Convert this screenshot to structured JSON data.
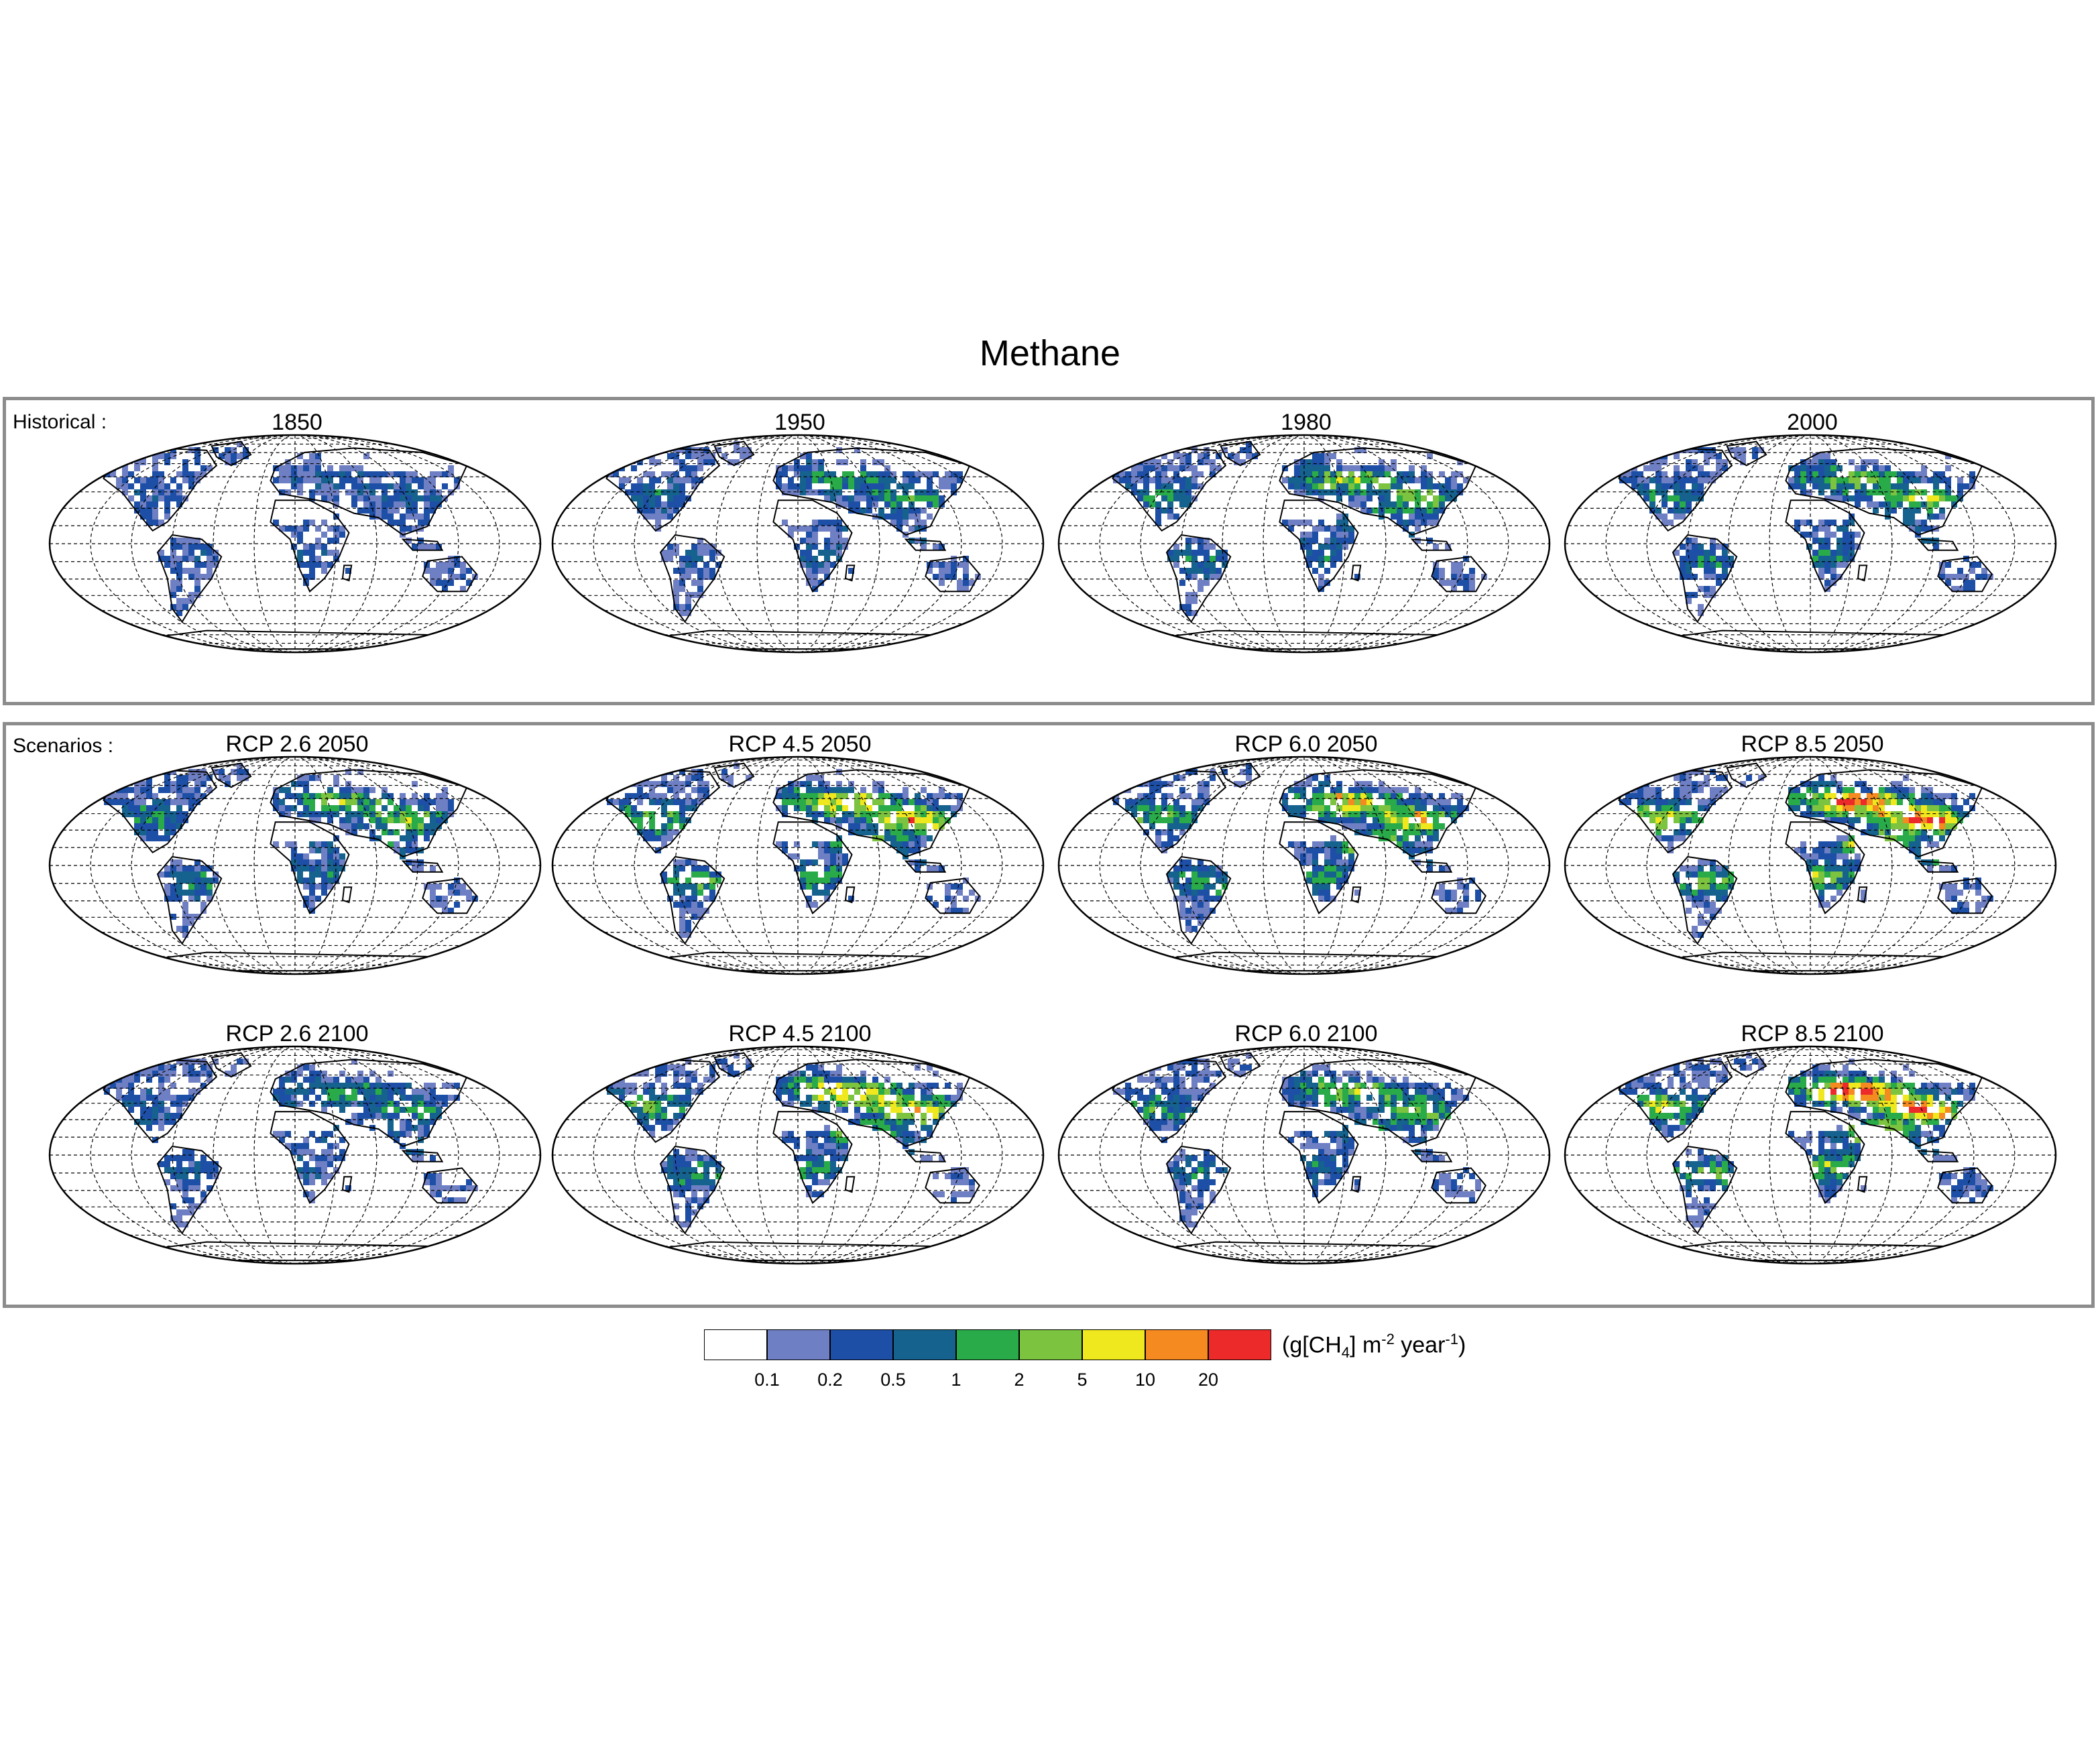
{
  "title": "Methane",
  "sections": {
    "historical_label": "Historical :",
    "scenarios_label": "Scenarios :"
  },
  "panels": [
    {
      "label": "1850",
      "level": 1
    },
    {
      "label": "1950",
      "level": 2
    },
    {
      "label": "1980",
      "level": 3
    },
    {
      "label": "2000",
      "level": 3
    },
    {
      "label": "RCP 2.6 2050",
      "level": 3
    },
    {
      "label": "RCP 4.5 2050",
      "level": 4
    },
    {
      "label": "RCP 6.0 2050",
      "level": 4
    },
    {
      "label": "RCP 8.5 2050",
      "level": 5
    },
    {
      "label": "RCP 2.6 2100",
      "level": 2
    },
    {
      "label": "RCP 4.5 2100",
      "level": 4
    },
    {
      "label": "RCP 6.0 2100",
      "level": 3
    },
    {
      "label": "RCP 8.5 2100",
      "level": 5
    }
  ],
  "colorbar": {
    "colors": [
      "#ffffff",
      "#6f7fc4",
      "#1d4fa6",
      "#16628e",
      "#2aab4a",
      "#7cc33f",
      "#f0e81e",
      "#f58a21",
      "#ec2a2a"
    ],
    "ticks": [
      "0.1",
      "0.2",
      "0.5",
      "1",
      "2",
      "5",
      "10",
      "20"
    ],
    "unit_prefix": "(g[CH",
    "unit_sub": "4",
    "unit_mid": "] m",
    "unit_sup1": "-2",
    "unit_mid2": " year",
    "unit_sup2": "-1",
    "unit_suffix": ")"
  }
}
